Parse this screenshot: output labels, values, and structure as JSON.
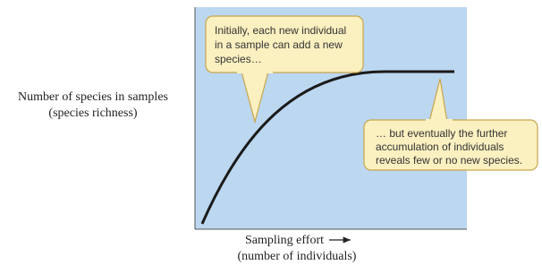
{
  "axes": {
    "y_label": [
      "Number of species in samples",
      "(species richness)"
    ],
    "x_label": [
      "Sampling effort",
      "(number of individuals)"
    ]
  },
  "callouts": [
    {
      "lines": [
        "Initially, each new individual",
        "in a sample can add a new",
        "species…"
      ]
    },
    {
      "lines": [
        "… but eventually the further",
        "accumulation of individuals",
        "reveals few or no new species."
      ]
    }
  ]
}
